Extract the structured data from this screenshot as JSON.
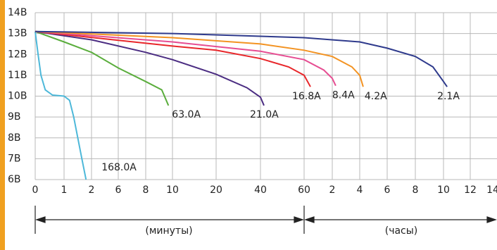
{
  "chart_data": {
    "type": "line",
    "annotations": [
      "(минуты)",
      "(часы)"
    ],
    "xlim": [
      0,
      840
    ],
    "xticks": [
      0,
      1,
      2,
      6,
      8,
      10,
      20,
      40,
      60,
      {
        "value": 120,
        "label": "2"
      },
      {
        "value": 240,
        "label": "4"
      },
      {
        "value": 360,
        "label": "6"
      },
      {
        "value": 480,
        "label": "8"
      },
      {
        "value": 600,
        "label": "10"
      },
      {
        "value": 720,
        "label": "12"
      },
      {
        "value": 840,
        "label": "14"
      }
    ],
    "ylim": [
      6,
      14
    ],
    "yticks": [
      {
        "value": 6,
        "label": "6В"
      },
      {
        "value": 7,
        "label": "7В"
      },
      {
        "value": 8,
        "label": "8В"
      },
      {
        "value": 9,
        "label": "9В"
      },
      {
        "value": 10,
        "label": "10В"
      },
      {
        "value": 11,
        "label": "11В"
      },
      {
        "value": 12,
        "label": "12В"
      },
      {
        "value": 13,
        "label": "13В"
      },
      {
        "value": 14,
        "label": "14В"
      }
    ],
    "grid": true,
    "series": [
      {
        "name": "168.0A",
        "color": "#4db8d9",
        "x": [
          0,
          0.1,
          0.2,
          0.35,
          0.6,
          1.0,
          1.2,
          1.35,
          1.5,
          1.65,
          1.8
        ],
        "values": [
          13.1,
          12.0,
          11.0,
          10.3,
          10.05,
          10.0,
          9.8,
          9.0,
          8.0,
          7.0,
          6.0
        ]
      },
      {
        "name": "63.0A",
        "color": "#5aad3c",
        "x": [
          0,
          1,
          2,
          6,
          8,
          9.2,
          9.7
        ],
        "values": [
          13.1,
          12.6,
          12.1,
          11.35,
          10.7,
          10.3,
          9.55
        ]
      },
      {
        "name": "21.0A",
        "color": "#4b2d82",
        "x": [
          0,
          2,
          8,
          10,
          20,
          33.9,
          40,
          41.6
        ],
        "values": [
          13.1,
          12.7,
          12.1,
          11.75,
          11.05,
          10.4,
          9.95,
          9.55
        ]
      },
      {
        "name": "16.8A",
        "color": "#e8262a",
        "x": [
          0,
          10,
          20,
          40,
          52.9,
          60,
          73.5
        ],
        "values": [
          13.1,
          12.4,
          12.2,
          11.8,
          11.4,
          11.0,
          10.45
        ]
      },
      {
        "name": "8.4A",
        "color": "#e64d92",
        "x": [
          0,
          10,
          40,
          60,
          102,
          120,
          135
        ],
        "values": [
          13.1,
          12.6,
          12.15,
          11.75,
          11.25,
          10.85,
          10.5
        ]
      },
      {
        "name": "4.2A",
        "color": "#f39322",
        "x": [
          0,
          10,
          40,
          60,
          120,
          206,
          240,
          255
        ],
        "values": [
          13.1,
          12.8,
          12.5,
          12.2,
          11.9,
          11.4,
          11.0,
          10.45
        ]
      },
      {
        "name": "2.1A",
        "color": "#2e3a8c",
        "x": [
          0,
          10,
          60,
          240,
          360,
          480,
          555,
          600,
          616
        ],
        "values": [
          13.1,
          13.0,
          12.8,
          12.6,
          12.3,
          11.9,
          11.4,
          10.7,
          10.45
        ]
      }
    ]
  }
}
